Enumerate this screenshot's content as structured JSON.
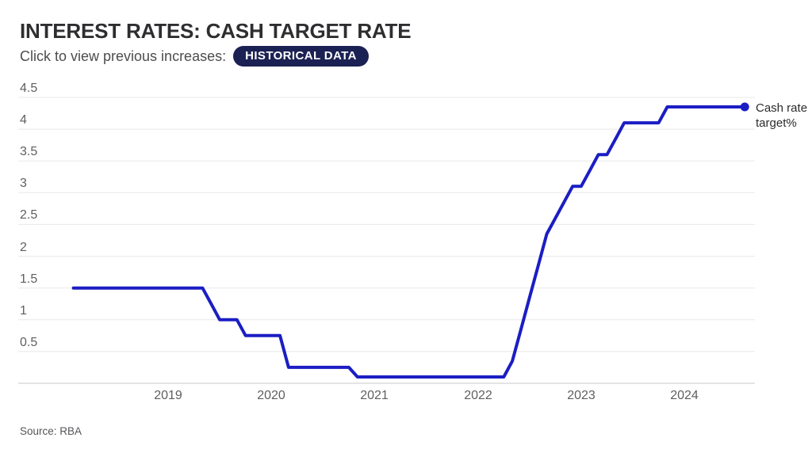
{
  "header": {
    "title": "INTEREST RATES: CASH TARGET RATE",
    "subtitle": "Click to view previous increases:",
    "button_label": "HISTORICAL DATA"
  },
  "footer": {
    "source": "Source: RBA"
  },
  "colors": {
    "line": "#1b1ec3",
    "marker": "#1b1ec3",
    "button_bg": "#1b2153",
    "button_text": "#ffffff",
    "title_text": "#2e2e30",
    "subtitle_text": "#4d4d4f",
    "axis_label": "#5e5f61",
    "gridline": "#e8e8e8",
    "axis_line": "#c9c9c9"
  },
  "chart_data": {
    "type": "line",
    "title": "INTEREST RATES: CASH TARGET RATE",
    "frequency": "monthly",
    "x_start": "2018-02",
    "x_end": "2024-08",
    "x_tick_labels": [
      "2019",
      "2020",
      "2021",
      "2022",
      "2023",
      "2024"
    ],
    "y_ticks": [
      0.5,
      1,
      1.5,
      2,
      2.5,
      3,
      3.5,
      4,
      4.5
    ],
    "y_tick_labels": [
      "0.5",
      "1",
      "1.5",
      "2",
      "2.5",
      "3",
      "3.5",
      "4",
      "4.5"
    ],
    "ylim": [
      0,
      4.5
    ],
    "grid": "horizontal",
    "legend_position": "right-of-last-point",
    "series": [
      {
        "name": "Cash rate target%",
        "end_marker": true,
        "values": [
          1.5,
          1.5,
          1.5,
          1.5,
          1.5,
          1.5,
          1.5,
          1.5,
          1.5,
          1.5,
          1.5,
          1.5,
          1.5,
          1.5,
          1.5,
          1.5,
          1.25,
          1.0,
          1.0,
          1.0,
          0.75,
          0.75,
          0.75,
          0.75,
          0.75,
          0.25,
          0.25,
          0.25,
          0.25,
          0.25,
          0.25,
          0.25,
          0.25,
          0.1,
          0.1,
          0.1,
          0.1,
          0.1,
          0.1,
          0.1,
          0.1,
          0.1,
          0.1,
          0.1,
          0.1,
          0.1,
          0.1,
          0.1,
          0.1,
          0.1,
          0.1,
          0.35,
          0.85,
          1.35,
          1.85,
          2.35,
          2.6,
          2.85,
          3.1,
          3.1,
          3.35,
          3.6,
          3.6,
          3.85,
          4.1,
          4.1,
          4.1,
          4.1,
          4.1,
          4.35,
          4.35,
          4.35,
          4.35,
          4.35,
          4.35,
          4.35,
          4.35,
          4.35,
          4.35
        ]
      }
    ]
  }
}
